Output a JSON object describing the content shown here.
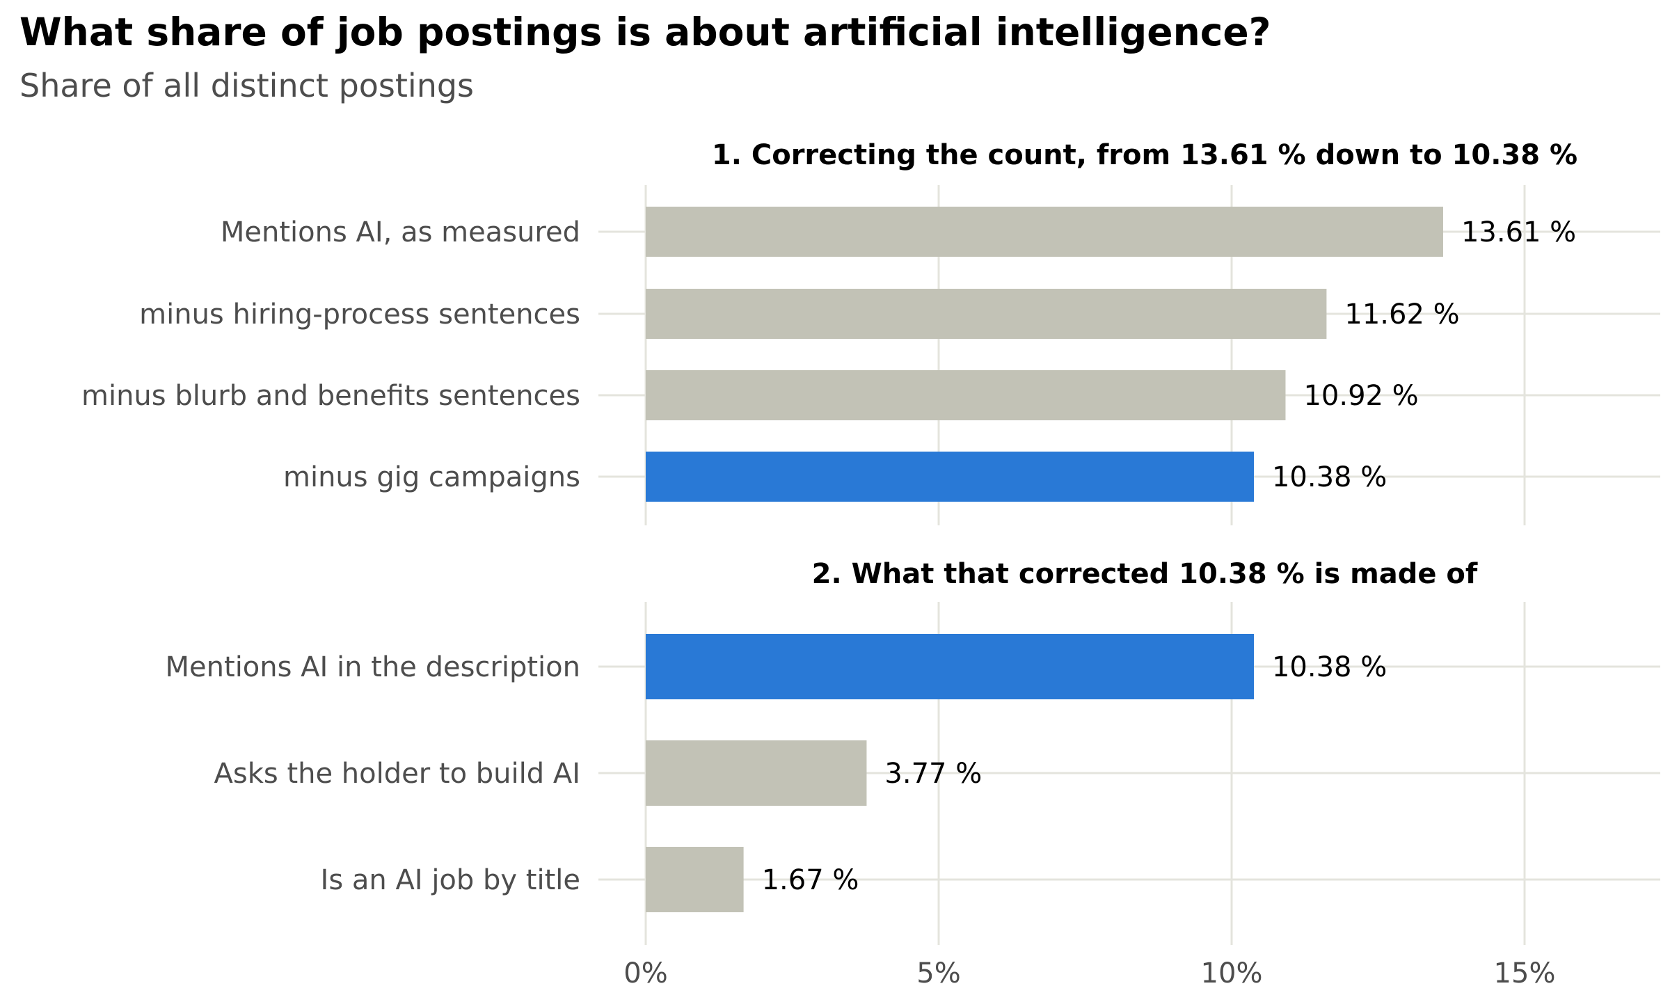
{
  "title": "What share of job postings is about artificial intelligence?",
  "subtitle": "Share of all distinct postings",
  "colors": {
    "highlight": "#2979d6",
    "bar": "#c2c2b6",
    "grid": "#e4e4dd",
    "text_muted": "#4d4d4d"
  },
  "chart_data": {
    "type": "bar",
    "orientation": "horizontal",
    "xlim": [
      0,
      17
    ],
    "x_ticks": [
      0,
      5,
      10,
      15
    ],
    "x_tick_labels": [
      "0%",
      "5%",
      "10%",
      "15%"
    ],
    "grid": true,
    "panels": [
      {
        "title": "1. Correcting the count, from 13.61 % down to 10.38 %",
        "bars": [
          {
            "category": "Mentions AI, as measured",
            "value": 13.61,
            "label": "13.61 %",
            "highlight": false
          },
          {
            "category": "minus hiring-process sentences",
            "value": 11.62,
            "label": "11.62 %",
            "highlight": false
          },
          {
            "category": "minus blurb and benefits sentences",
            "value": 10.92,
            "label": "10.92 %",
            "highlight": false
          },
          {
            "category": "minus gig campaigns",
            "value": 10.38,
            "label": "10.38 %",
            "highlight": true
          }
        ]
      },
      {
        "title": "2. What that corrected 10.38 % is made of",
        "bars": [
          {
            "category": "Mentions AI in the description",
            "value": 10.38,
            "label": "10.38 %",
            "highlight": true
          },
          {
            "category": "Asks the holder to build AI",
            "value": 3.77,
            "label": "3.77 %",
            "highlight": false
          },
          {
            "category": "Is an AI job by title",
            "value": 1.67,
            "label": "1.67 %",
            "highlight": false
          }
        ]
      }
    ]
  }
}
